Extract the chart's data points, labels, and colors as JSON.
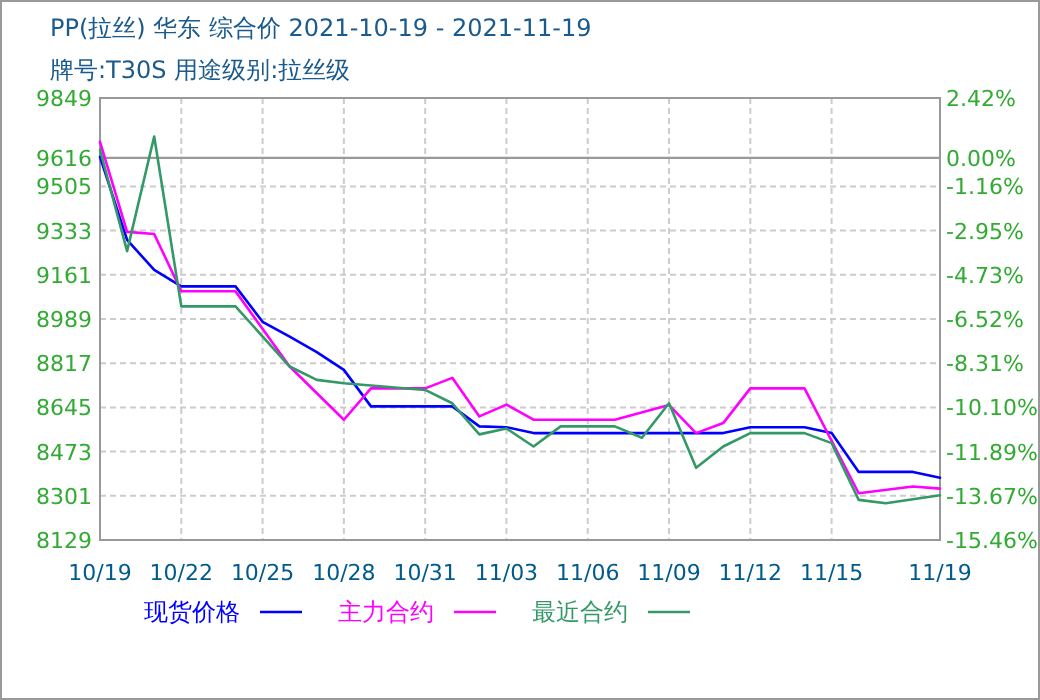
{
  "chart_data": {
    "type": "line",
    "title": "PP(拉丝) 华东 综合价 2021-10-19 - 2021-11-19",
    "subtitle": "牌号:T30S 用途级别:拉丝级",
    "xlim": [
      "2021-10-19",
      "2021-11-19"
    ],
    "xticks": [
      {
        "value": "2021-10-19",
        "label": "10/19"
      },
      {
        "value": "2021-10-22",
        "label": "10/22"
      },
      {
        "value": "2021-10-25",
        "label": "10/25"
      },
      {
        "value": "2021-10-28",
        "label": "10/28"
      },
      {
        "value": "2021-10-31",
        "label": "10/31"
      },
      {
        "value": "2021-11-03",
        "label": "11/03"
      },
      {
        "value": "2021-11-06",
        "label": "11/06"
      },
      {
        "value": "2021-11-09",
        "label": "11/09"
      },
      {
        "value": "2021-11-12",
        "label": "11/12"
      },
      {
        "value": "2021-11-15",
        "label": "11/15"
      },
      {
        "value": "2021-11-19",
        "label": "11/19"
      }
    ],
    "ylim": [
      8129,
      9849
    ],
    "yticks": [
      8129,
      8301,
      8473,
      8645,
      8817,
      8989,
      9161,
      9333,
      9505,
      9616,
      9849
    ],
    "y2lim": [
      -15.46,
      2.42
    ],
    "y2ticks": [
      {
        "value": -15.46,
        "label": "-15.46%"
      },
      {
        "value": -13.67,
        "label": "-13.67%"
      },
      {
        "value": -11.89,
        "label": "-11.89%"
      },
      {
        "value": -10.1,
        "label": "-10.10%"
      },
      {
        "value": -8.31,
        "label": "-8.31%"
      },
      {
        "value": -6.52,
        "label": "-6.52%"
      },
      {
        "value": -4.73,
        "label": "-4.73%"
      },
      {
        "value": -2.95,
        "label": "-2.95%"
      },
      {
        "value": -1.16,
        "label": "-1.16%"
      },
      {
        "value": 0,
        "label": "0.00%"
      },
      {
        "value": 2.42,
        "label": "2.42%"
      }
    ],
    "grid": true,
    "legend": "bottom",
    "marker": "none",
    "line_style": "solid",
    "ref_lines": [
      {
        "axis": "y",
        "value": 9616,
        "color": "#999999"
      }
    ],
    "series": [
      {
        "name": "现货价格",
        "color": "#0000ff",
        "x": [
          "2021-10-19",
          "2021-10-20",
          "2021-10-21",
          "2021-10-22",
          "2021-10-24",
          "2021-10-25",
          "2021-10-26",
          "2021-10-27",
          "2021-10-28",
          "2021-10-29",
          "2021-11-01",
          "2021-11-02",
          "2021-11-03",
          "2021-11-04",
          "2021-11-11",
          "2021-11-12",
          "2021-11-14",
          "2021-11-15",
          "2021-11-16",
          "2021-11-18",
          "2021-11-19"
        ],
        "values": [
          9620,
          9297,
          9180,
          9116,
          9116,
          8978,
          8920,
          8860,
          8791,
          8649,
          8649,
          8571,
          8568,
          8545,
          8545,
          8568,
          8568,
          8545,
          8394,
          8394,
          8371
        ]
      },
      {
        "name": "主力合约",
        "color": "#ff00ff",
        "x": [
          "2021-10-19",
          "2021-10-20",
          "2021-10-21",
          "2021-10-22",
          "2021-10-24",
          "2021-10-26",
          "2021-10-28",
          "2021-10-29",
          "2021-10-31",
          "2021-11-01",
          "2021-11-02",
          "2021-11-03",
          "2021-11-04",
          "2021-11-07",
          "2021-11-09",
          "2021-11-10",
          "2021-11-11",
          "2021-11-12",
          "2021-11-14",
          "2021-11-16",
          "2021-11-18",
          "2021-11-19"
        ],
        "values": [
          9678,
          9328,
          9320,
          9097,
          9097,
          8804,
          8597,
          8719,
          8719,
          8760,
          8610,
          8656,
          8597,
          8597,
          8654,
          8545,
          8584,
          8719,
          8719,
          8311,
          8337,
          8329
        ]
      },
      {
        "name": "最近合约",
        "color": "#339966",
        "x": [
          "2021-10-19",
          "2021-10-20",
          "2021-10-21",
          "2021-10-22",
          "2021-10-24",
          "2021-10-26",
          "2021-10-27",
          "2021-10-28",
          "2021-10-31",
          "2021-11-01",
          "2021-11-02",
          "2021-11-03",
          "2021-11-04",
          "2021-11-05",
          "2021-11-07",
          "2021-11-08",
          "2021-11-09",
          "2021-11-10",
          "2021-11-11",
          "2021-11-12",
          "2021-11-14",
          "2021-11-15",
          "2021-11-16",
          "2021-11-17",
          "2021-11-19"
        ],
        "values": [
          9647,
          9253,
          9699,
          9038,
          9038,
          8804,
          8752,
          8739,
          8713,
          8661,
          8540,
          8563,
          8493,
          8571,
          8571,
          8527,
          8661,
          8410,
          8493,
          8545,
          8545,
          8506,
          8285,
          8272,
          8303
        ]
      }
    ]
  }
}
